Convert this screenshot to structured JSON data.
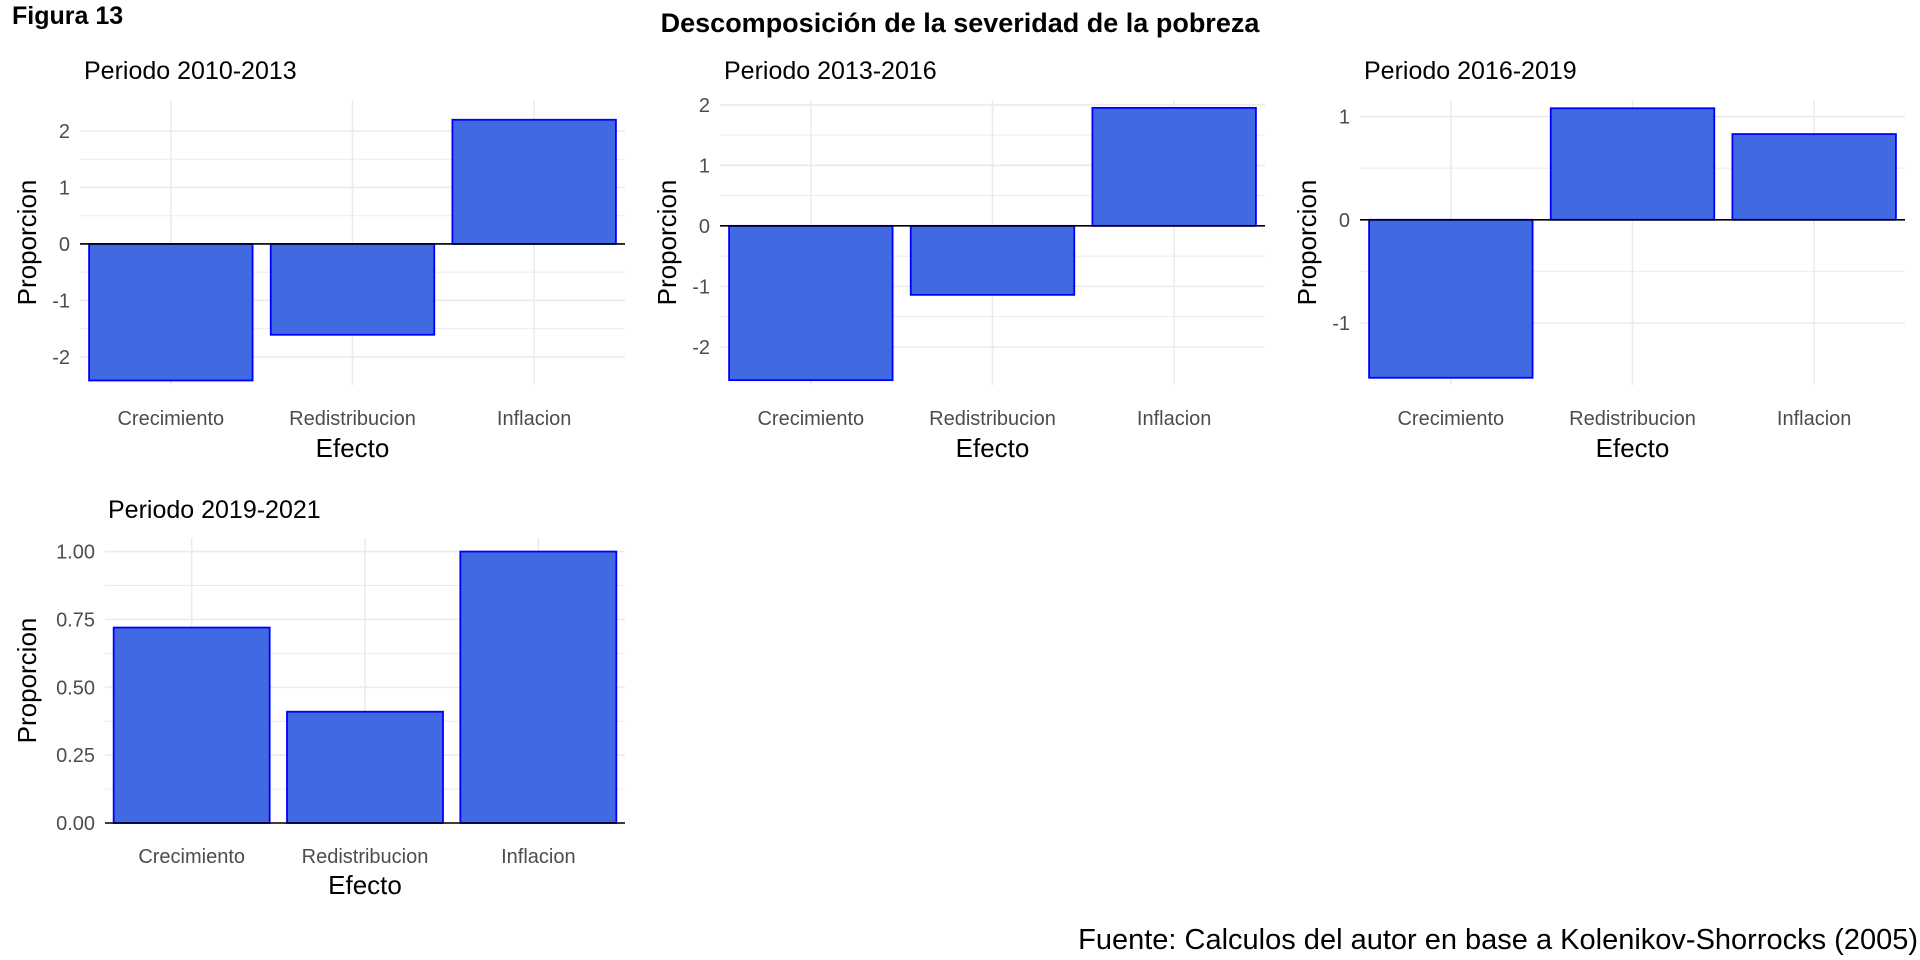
{
  "figure_label": "Figura 13",
  "title": "Descomposición de la severidad de la pobreza",
  "source_note": "Fuente: Calculos del autor en base a Kolenikov-Shorrocks (2005)",
  "colors": {
    "bar_fill": "#4169E1",
    "bar_stroke": "#0000FF",
    "grid": "#EBEBEB",
    "axis_text": "#4D4D4D"
  },
  "chart_data": [
    {
      "type": "bar",
      "title": "Periodo 2010-2013",
      "xlabel": "Efecto",
      "ylabel": "Proporcion",
      "categories": [
        "Crecimiento",
        "Redistribucion",
        "Inflacion"
      ],
      "values": [
        -2.42,
        -1.61,
        2.2
      ],
      "yticks": [
        -2,
        -1,
        0,
        1,
        2
      ],
      "tick_labels": [
        "-2",
        "-1",
        "0",
        "1",
        "2"
      ],
      "ylim": [
        -2.5,
        2.55
      ],
      "grid": true
    },
    {
      "type": "bar",
      "title": "Periodo 2013-2016",
      "xlabel": "Efecto",
      "ylabel": "Proporcion",
      "categories": [
        "Crecimiento",
        "Redistribucion",
        "Inflacion"
      ],
      "values": [
        -2.55,
        -1.14,
        1.95
      ],
      "yticks": [
        -2,
        -1,
        0,
        1,
        2
      ],
      "tick_labels": [
        "-2",
        "-1",
        "0",
        "1",
        "2"
      ],
      "ylim": [
        -2.63,
        2.08
      ],
      "grid": true
    },
    {
      "type": "bar",
      "title": "Periodo 2016-2019",
      "xlabel": "Efecto",
      "ylabel": "Proporcion",
      "categories": [
        "Crecimiento",
        "Redistribucion",
        "Inflacion"
      ],
      "values": [
        -1.53,
        1.08,
        0.83
      ],
      "yticks": [
        -1,
        0,
        1
      ],
      "tick_labels": [
        "-1",
        "0",
        "1"
      ],
      "ylim": [
        -1.6,
        1.16
      ],
      "grid": true
    },
    {
      "type": "bar",
      "title": "Periodo 2019-2021",
      "xlabel": "Efecto",
      "ylabel": "Proporcion",
      "categories": [
        "Crecimiento",
        "Redistribucion",
        "Inflacion"
      ],
      "values": [
        0.72,
        0.41,
        1.0
      ],
      "yticks": [
        0,
        0.25,
        0.5,
        0.75,
        1
      ],
      "tick_labels": [
        "0.00",
        "0.25",
        "0.50",
        "0.75",
        "1.00"
      ],
      "ylim": [
        0,
        1.05
      ],
      "grid": true
    }
  ]
}
